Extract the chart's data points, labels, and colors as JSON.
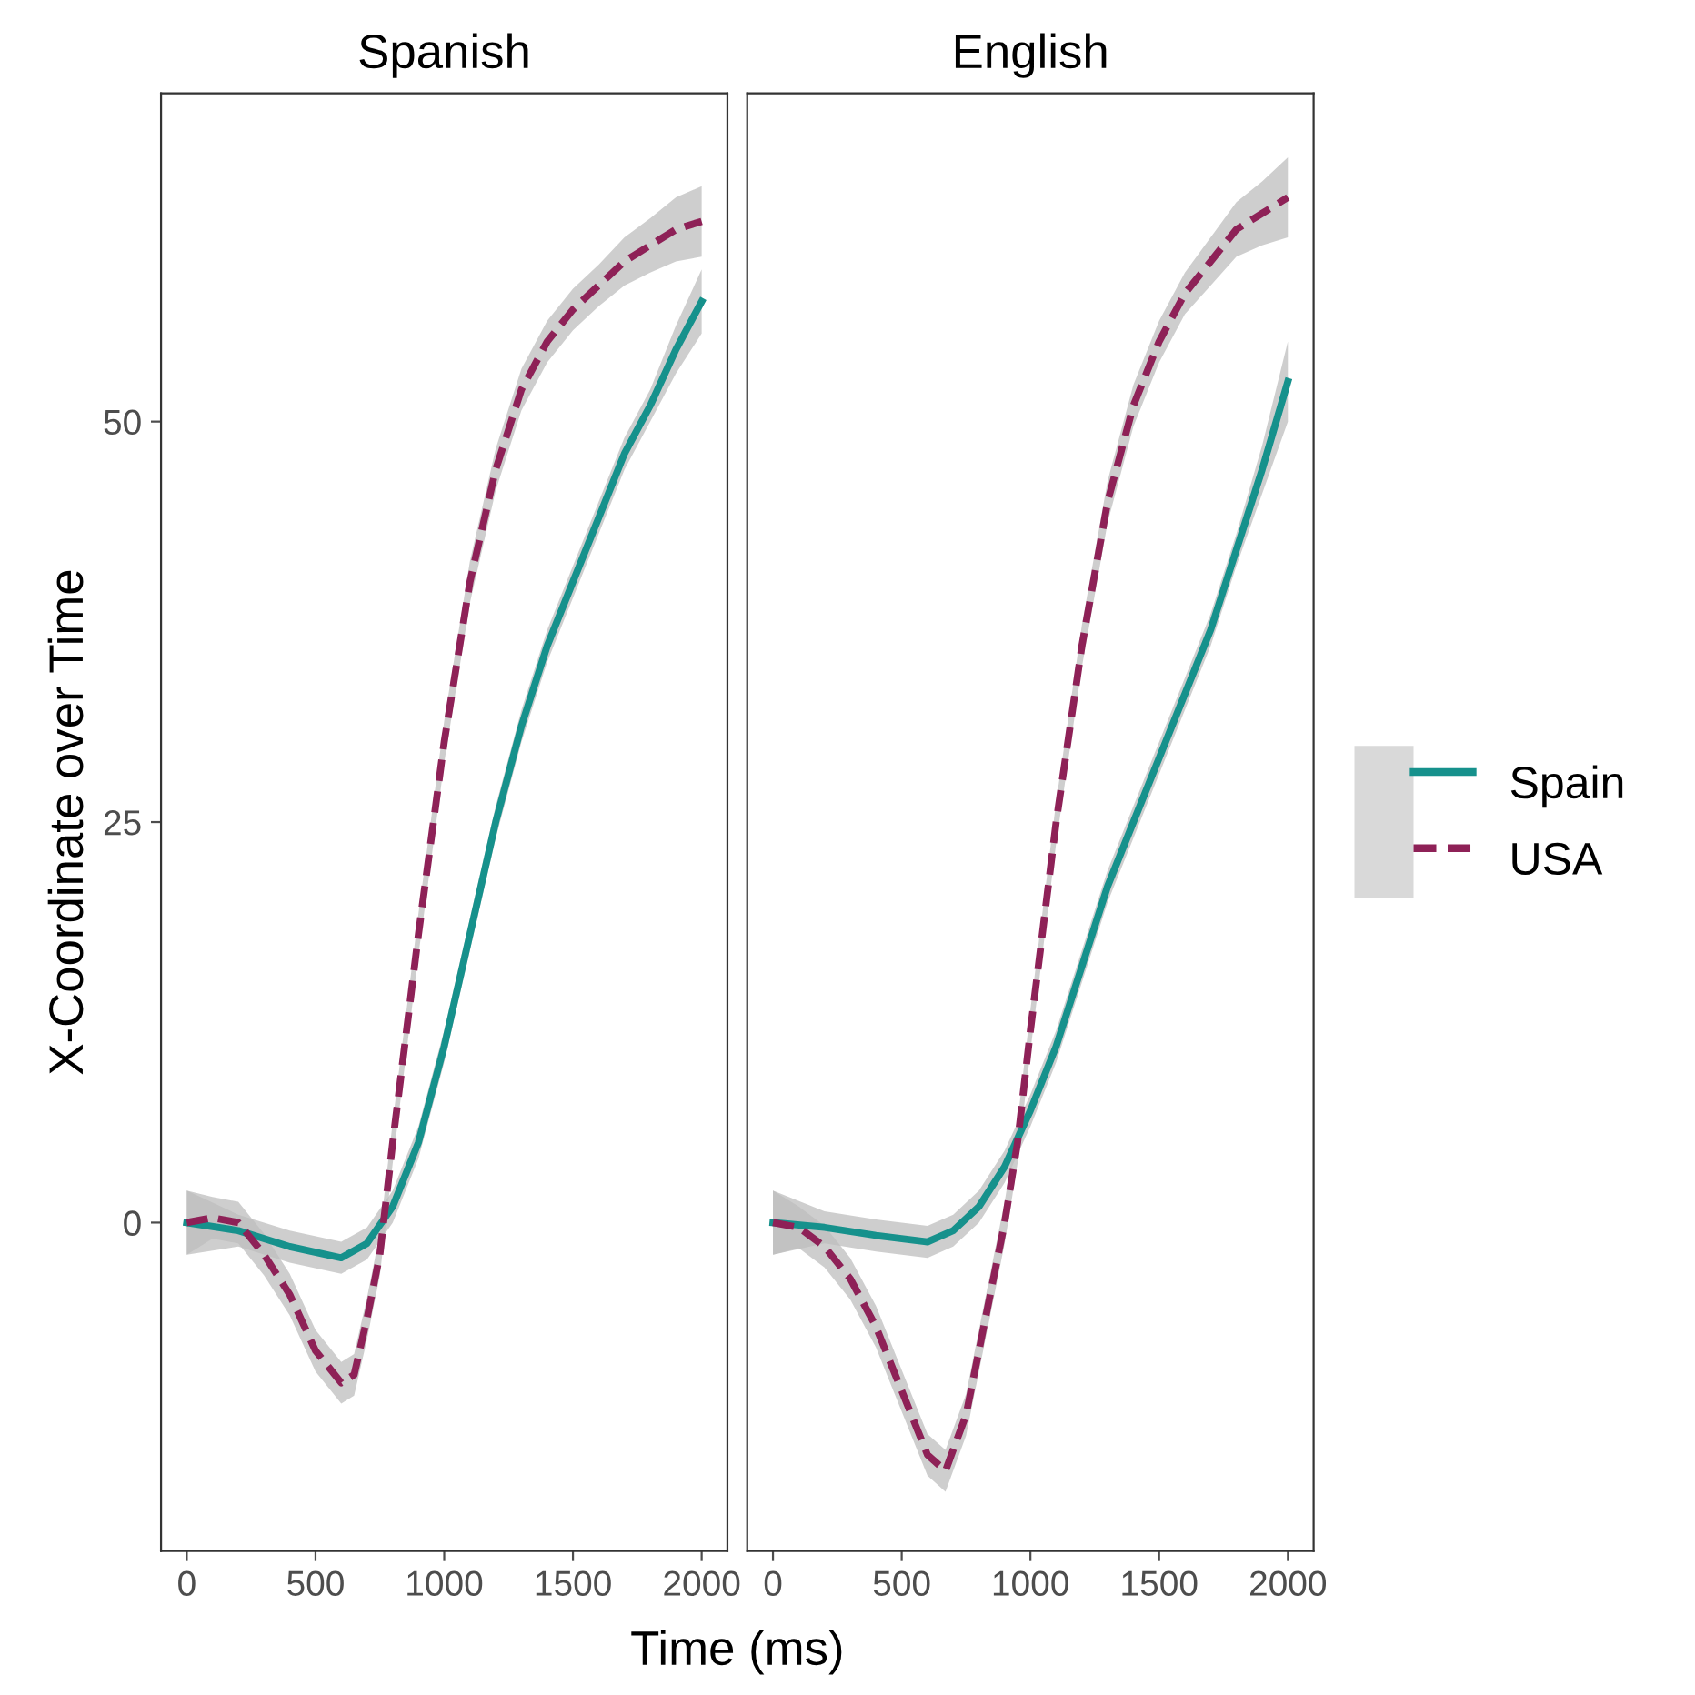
{
  "chart_data": [
    {
      "type": "line",
      "title": "Spanish",
      "xlabel": "Time (ms)",
      "ylabel": "X-Coordinate over Time",
      "xlim": [
        -100,
        2100
      ],
      "xticks": [
        0,
        500,
        1000,
        1500,
        2000
      ],
      "ylim": [
        -20.5,
        70.5
      ],
      "yticks": [
        0,
        25,
        50
      ],
      "grid": false,
      "legend": false,
      "series": [
        {
          "color": "#16918c",
          "line_style": "solid",
          "x": [
            0,
            200,
            400,
            600,
            700,
            800,
            900,
            1000,
            1100,
            1200,
            1300,
            1400,
            1500,
            1600,
            1700,
            1800,
            1900,
            2000
          ],
          "values": [
            0,
            -0.5,
            -1.5,
            -2.2,
            -1.3,
            1,
            5,
            11,
            18,
            25,
            31,
            36,
            40,
            44,
            48,
            51,
            54.5,
            57.5
          ],
          "lower": [
            -2,
            -1.5,
            -2.5,
            -3.2,
            -2.3,
            0,
            4,
            10,
            17,
            24,
            30,
            35,
            39,
            43,
            47,
            50,
            53,
            55.5
          ],
          "upper": [
            2,
            0.5,
            -0.5,
            -1.2,
            -0.3,
            2,
            6,
            12,
            19,
            26,
            32,
            37,
            41,
            45,
            49,
            52,
            56,
            59.5
          ]
        },
        {
          "color": "#8e2157",
          "line_style": "dashed",
          "x": [
            0,
            100,
            200,
            300,
            400,
            500,
            600,
            650,
            700,
            750,
            800,
            900,
            1000,
            1100,
            1200,
            1300,
            1400,
            1500,
            1600,
            1700,
            1800,
            1900,
            2000
          ],
          "values": [
            0,
            0.3,
            0,
            -2,
            -4.5,
            -8,
            -10,
            -9.5,
            -6,
            -2,
            5,
            18,
            30,
            40,
            47,
            52,
            55,
            57,
            58.5,
            60,
            61,
            62,
            62.5
          ],
          "lower": [
            -2,
            -1,
            -1.3,
            -3.3,
            -5.8,
            -9.3,
            -11.3,
            -10.8,
            -7.3,
            -3.3,
            3.7,
            16.7,
            28.7,
            38.7,
            45.7,
            50.7,
            53.7,
            55.7,
            57.2,
            58.5,
            59.3,
            60,
            60.3
          ],
          "upper": [
            2,
            1.6,
            1.3,
            -0.7,
            -3.2,
            -6.7,
            -8.7,
            -8.2,
            -4.7,
            -0.7,
            6.3,
            19.3,
            31.3,
            41.3,
            48.3,
            53.3,
            56.3,
            58.3,
            59.8,
            61.5,
            62.7,
            64,
            64.7
          ]
        }
      ]
    },
    {
      "type": "line",
      "title": "English",
      "xlim": [
        -100,
        2100
      ],
      "xticks": [
        0,
        500,
        1000,
        1500,
        2000
      ],
      "ylim": [
        -20.5,
        70.5
      ],
      "yticks": [
        0,
        25,
        50
      ],
      "tick_labels": "x",
      "grid": false,
      "legend": "right",
      "series": [
        {
          "name": "Spain",
          "color": "#16918c",
          "line_style": "solid",
          "x": [
            0,
            200,
            400,
            600,
            700,
            800,
            900,
            1000,
            1100,
            1200,
            1300,
            1400,
            1500,
            1600,
            1700,
            1800,
            1900,
            2000
          ],
          "values": [
            0,
            -0.3,
            -0.8,
            -1.2,
            -0.5,
            1,
            3.5,
            7,
            11,
            16,
            21,
            25,
            29,
            33,
            37,
            42,
            47,
            52.5
          ],
          "lower": [
            -2,
            -1.3,
            -1.8,
            -2.2,
            -1.5,
            0,
            2.5,
            6,
            10,
            15,
            20,
            24,
            28,
            32,
            36,
            41,
            45.5,
            50
          ],
          "upper": [
            2,
            0.7,
            0.2,
            -0.2,
            0.5,
            2,
            4.5,
            8,
            12,
            17,
            22,
            26,
            30,
            34,
            38,
            43,
            48.5,
            55
          ]
        },
        {
          "name": "USA",
          "color": "#8e2157",
          "line_style": "dashed",
          "x": [
            0,
            100,
            200,
            300,
            400,
            500,
            600,
            670,
            750,
            800,
            900,
            950,
            1000,
            1100,
            1200,
            1300,
            1400,
            1500,
            1600,
            1700,
            1800,
            1900,
            2000
          ],
          "values": [
            0,
            -0.3,
            -1.5,
            -3.5,
            -6.5,
            -10.5,
            -14.5,
            -15.5,
            -12,
            -8,
            0,
            5,
            12,
            25,
            36,
            45,
            51,
            55,
            58,
            60,
            62,
            63,
            64
          ],
          "lower": [
            -2,
            -1.6,
            -2.8,
            -4.8,
            -7.8,
            -11.8,
            -15.8,
            -16.8,
            -13.3,
            -9.3,
            -1.3,
            3.7,
            10.7,
            23.7,
            34.7,
            43.7,
            49.7,
            53.7,
            56.7,
            58.5,
            60.3,
            61,
            61.5
          ],
          "upper": [
            2,
            1,
            -0.2,
            -2.2,
            -5.2,
            -9.2,
            -13.2,
            -14.2,
            -10.7,
            -6.7,
            1.3,
            6.3,
            13.3,
            26.3,
            37.3,
            46.3,
            52.3,
            56.3,
            59.3,
            61.5,
            63.7,
            65,
            66.5
          ]
        }
      ]
    }
  ]
}
